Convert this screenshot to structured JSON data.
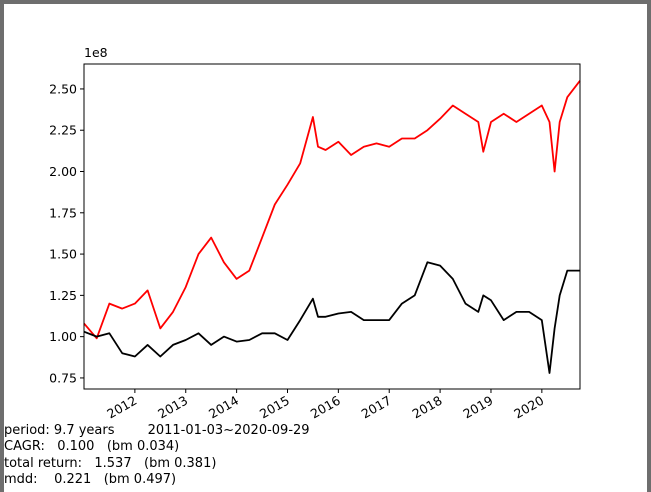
{
  "chart_data": {
    "type": "line",
    "offset_label": "1e8",
    "x": [
      2011.0,
      2011.25,
      2011.5,
      2011.75,
      2012.0,
      2012.25,
      2012.5,
      2012.75,
      2013.0,
      2013.25,
      2013.5,
      2013.75,
      2014.0,
      2014.25,
      2014.5,
      2014.75,
      2015.0,
      2015.25,
      2015.5,
      2015.6,
      2015.75,
      2016.0,
      2016.25,
      2016.5,
      2016.75,
      2017.0,
      2017.25,
      2017.5,
      2017.75,
      2018.0,
      2018.25,
      2018.5,
      2018.75,
      2018.85,
      2019.0,
      2019.25,
      2019.5,
      2019.75,
      2020.0,
      2020.15,
      2020.25,
      2020.35,
      2020.5,
      2020.75
    ],
    "series": [
      {
        "color": "#ff0000",
        "values": [
          1.08,
          0.99,
          1.2,
          1.17,
          1.2,
          1.28,
          1.05,
          1.15,
          1.3,
          1.5,
          1.6,
          1.45,
          1.35,
          1.4,
          1.6,
          1.8,
          1.92,
          2.05,
          2.33,
          2.15,
          2.13,
          2.18,
          2.1,
          2.15,
          2.17,
          2.15,
          2.2,
          2.2,
          2.25,
          2.32,
          2.4,
          2.35,
          2.3,
          2.12,
          2.3,
          2.35,
          2.3,
          2.35,
          2.4,
          2.3,
          2.0,
          2.3,
          2.45,
          2.55
        ]
      },
      {
        "color": "#000000",
        "values": [
          1.03,
          1.0,
          1.02,
          0.9,
          0.88,
          0.95,
          0.88,
          0.95,
          0.98,
          1.02,
          0.95,
          1.0,
          0.97,
          0.98,
          1.02,
          1.02,
          0.98,
          1.1,
          1.23,
          1.12,
          1.12,
          1.14,
          1.15,
          1.1,
          1.1,
          1.1,
          1.2,
          1.25,
          1.45,
          1.43,
          1.35,
          1.2,
          1.15,
          1.25,
          1.22,
          1.1,
          1.15,
          1.15,
          1.1,
          0.78,
          1.05,
          1.25,
          1.4,
          1.4
        ]
      }
    ],
    "xlim": [
      2011.0,
      2020.75
    ],
    "xticks": [
      2012,
      2013,
      2014,
      2015,
      2016,
      2017,
      2018,
      2019,
      2020
    ],
    "ylim": [
      0.683,
      2.651
    ],
    "yticks": [
      {
        "value": 0.75,
        "label": "0.75"
      },
      {
        "value": 1,
        "label": "1.00"
      },
      {
        "value": 1.25,
        "label": "1.25"
      },
      {
        "value": 1.5,
        "label": "1.50"
      },
      {
        "value": 1.75,
        "label": "1.75"
      },
      {
        "value": 2,
        "label": "2.00"
      },
      {
        "value": 2.25,
        "label": "2.25"
      },
      {
        "value": 2.5,
        "label": "2.50"
      }
    ],
    "stats": [
      "period: 9.7 years        2011-01-03~2020-09-29",
      "CAGR:   0.100   (bm 0.034)",
      "total return:   1.537   (bm 0.381)",
      "mdd:    0.221   (bm 0.497)"
    ]
  }
}
